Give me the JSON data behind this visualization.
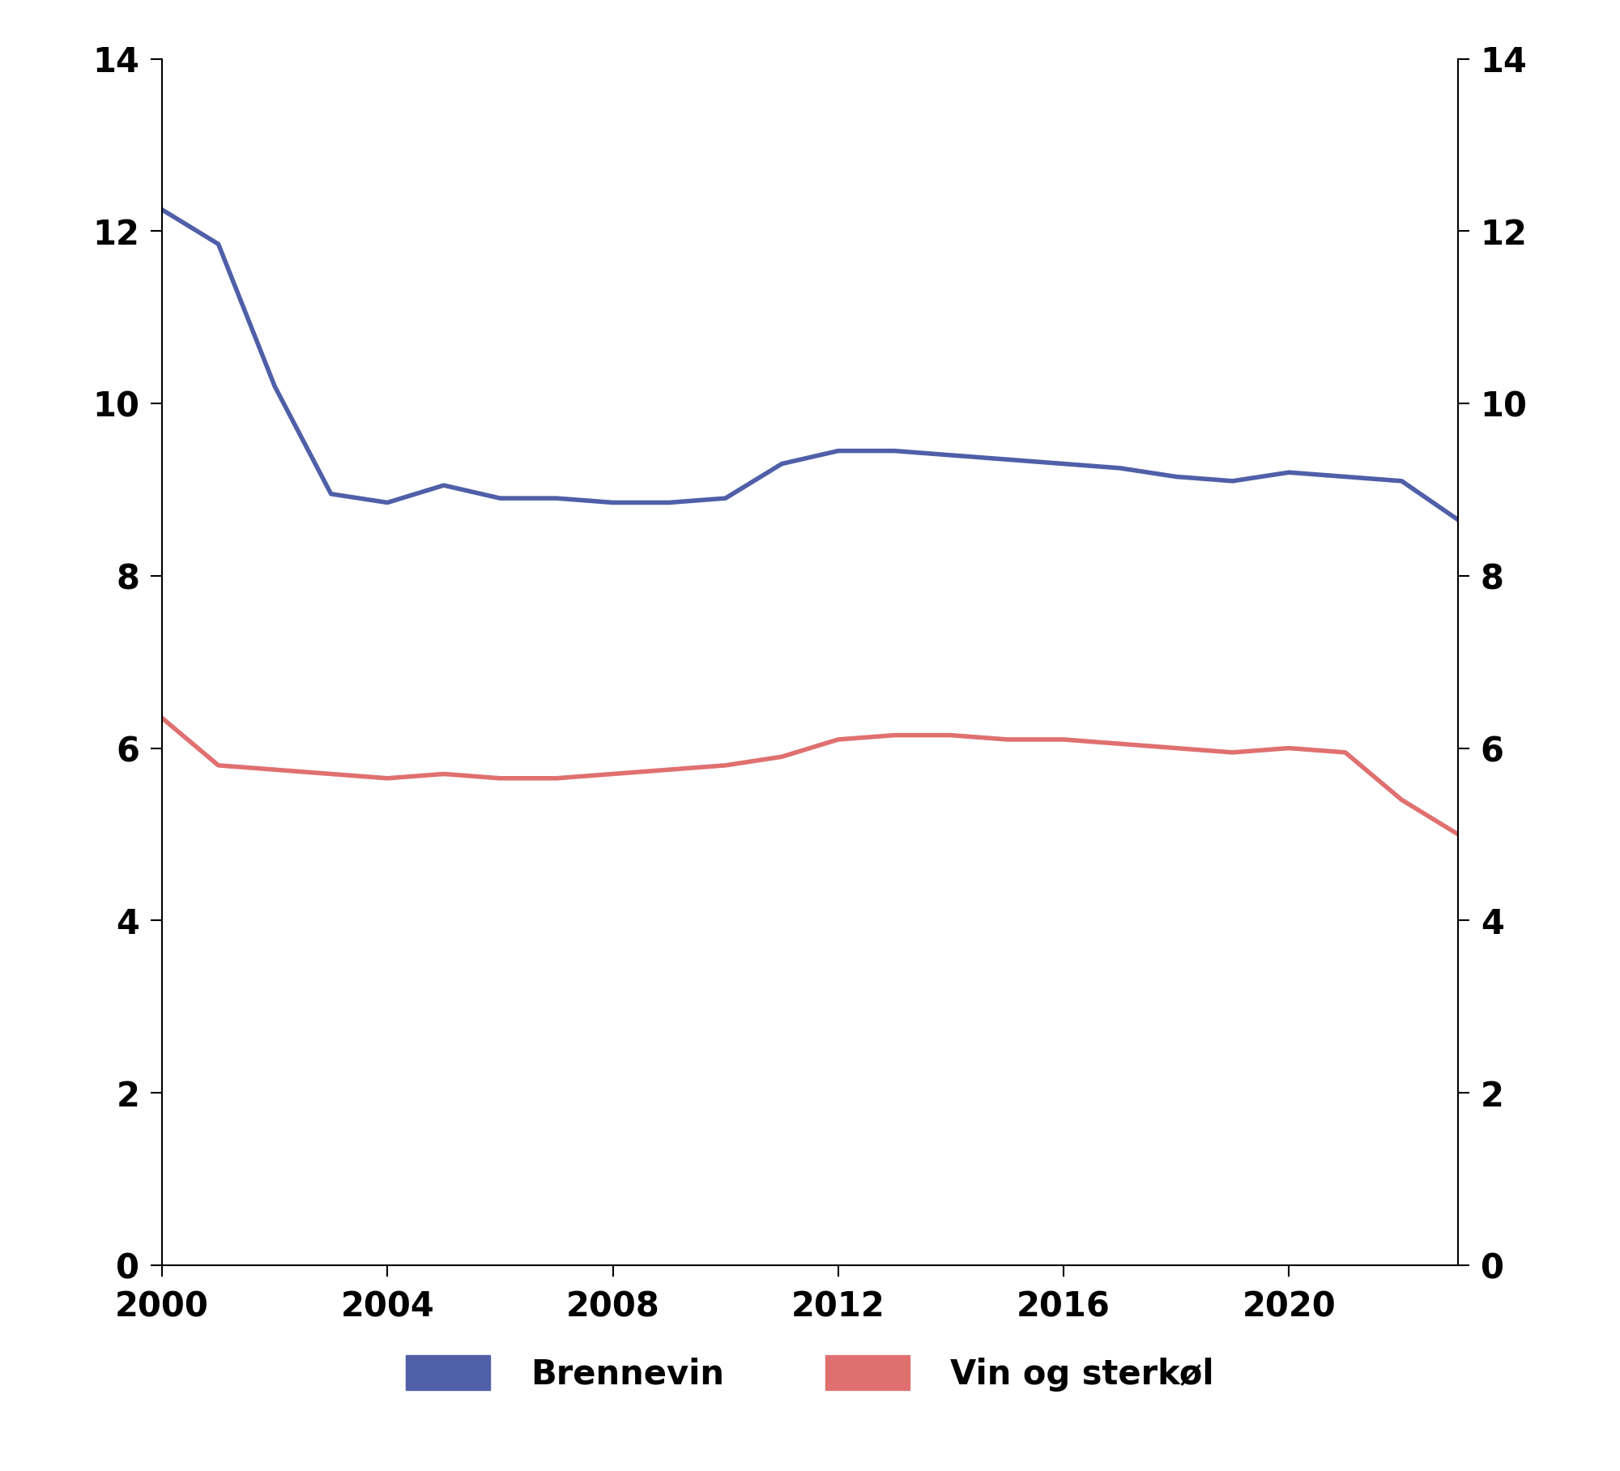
{
  "years": [
    2000,
    2001,
    2002,
    2003,
    2004,
    2005,
    2006,
    2007,
    2008,
    2009,
    2010,
    2011,
    2012,
    2013,
    2014,
    2015,
    2016,
    2017,
    2018,
    2019,
    2020,
    2021,
    2022,
    2023
  ],
  "brennevin": [
    12.25,
    11.85,
    10.2,
    8.95,
    8.85,
    9.05,
    8.9,
    8.9,
    8.85,
    8.85,
    8.9,
    9.3,
    9.45,
    9.45,
    9.4,
    9.35,
    9.3,
    9.25,
    9.15,
    9.1,
    9.2,
    9.15,
    9.1,
    8.65
  ],
  "vin_og_sterkol": [
    6.35,
    5.8,
    5.75,
    5.7,
    5.65,
    5.7,
    5.65,
    5.65,
    5.7,
    5.75,
    5.8,
    5.9,
    6.1,
    6.15,
    6.15,
    6.1,
    6.1,
    6.05,
    6.0,
    5.95,
    6.0,
    5.95,
    5.4,
    5.0
  ],
  "brennevin_color": "#4f5fa8",
  "vin_color": "#e07070",
  "ylim": [
    0,
    14
  ],
  "yticks": [
    0,
    2,
    4,
    6,
    8,
    10,
    12,
    14
  ],
  "xticks": [
    2000,
    2004,
    2008,
    2012,
    2016,
    2020
  ],
  "legend_labels": [
    "Brennevin",
    "Vin og sterkøl"
  ],
  "line_width": 4.0,
  "background_color": "#ffffff",
  "font_size_ticks": 30,
  "font_size_legend": 30
}
